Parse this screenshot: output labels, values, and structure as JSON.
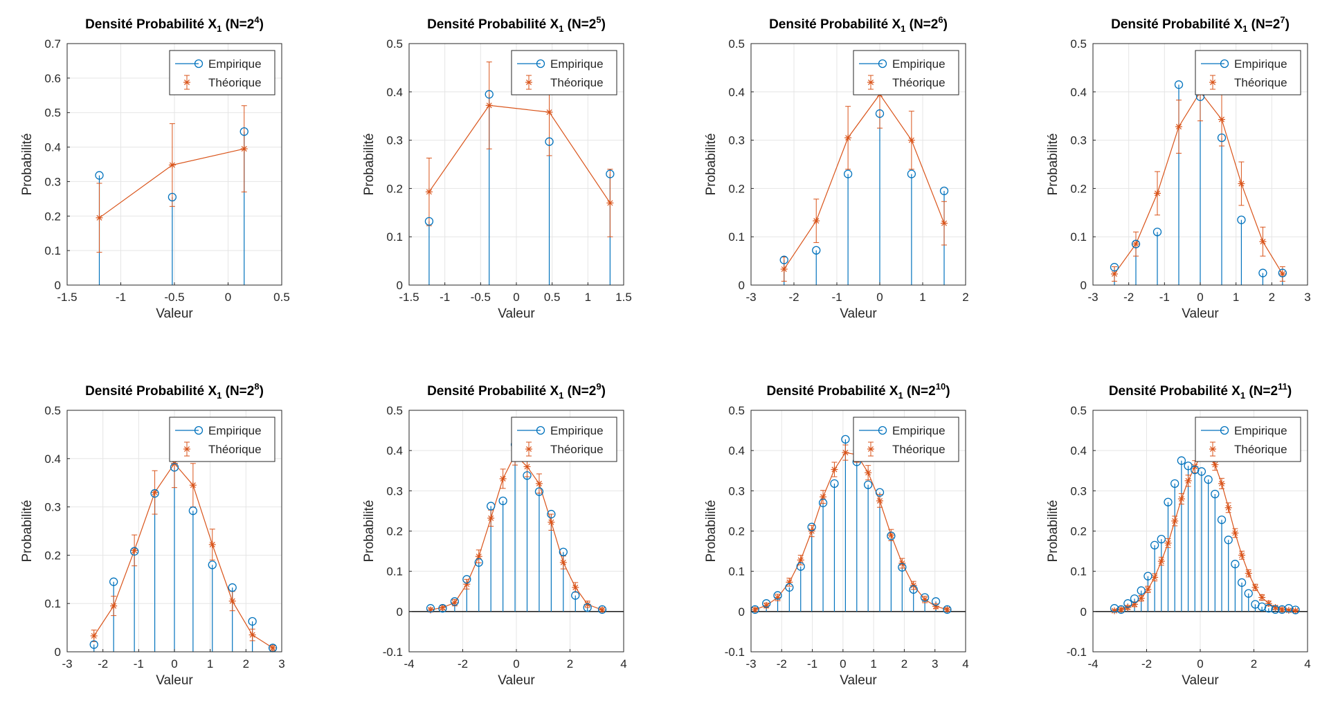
{
  "colors": {
    "empirical": "#0072BD",
    "theoretical": "#D95319",
    "grid": "#e5e5e5",
    "axis": "#262626"
  },
  "legend_labels": {
    "empirical": "Empirique",
    "theoretical": "Théorique"
  },
  "chart_data": [
    {
      "type": "stem+errorbar",
      "title": "Densité Probabilité X",
      "title_sub": "1",
      "title_n": "(N=2",
      "title_exp": "4",
      "title_close": ")",
      "xlabel": "Valeur",
      "ylabel": "Probabilité",
      "xlim": [
        -1.5,
        0.5
      ],
      "ylim": [
        0,
        0.7
      ],
      "xticks": [
        -1.5,
        -1,
        -0.5,
        0,
        0.5
      ],
      "xtick_labels": [
        "-1.5",
        "-1",
        "-0.5",
        "0",
        "0.5"
      ],
      "yticks": [
        0,
        0.1,
        0.2,
        0.3,
        0.4,
        0.5,
        0.6,
        0.7
      ],
      "ytick_labels": [
        "0",
        "0.1",
        "0.2",
        "0.3",
        "0.4",
        "0.5",
        "0.6",
        "0.7"
      ],
      "legend": "top-right",
      "grid": true,
      "x": [
        -1.2,
        -0.52,
        0.15
      ],
      "empirical": [
        0.318,
        0.255,
        0.445
      ],
      "theoretical": [
        0.195,
        0.348,
        0.395
      ],
      "error": [
        0.1,
        0.12,
        0.125
      ]
    },
    {
      "type": "stem+errorbar",
      "title": "Densité Probabilité X",
      "title_sub": "1",
      "title_n": "(N=2",
      "title_exp": "5",
      "title_close": ")",
      "xlabel": "Valeur",
      "ylabel": "Probabilité",
      "xlim": [
        -1.5,
        1.5
      ],
      "ylim": [
        0,
        0.5
      ],
      "xticks": [
        -1.5,
        -1,
        -0.5,
        0,
        0.5,
        1,
        1.5
      ],
      "xtick_labels": [
        "-1.5",
        "-1",
        "-0.5",
        "0",
        "0.5",
        "1",
        "1.5"
      ],
      "yticks": [
        0,
        0.1,
        0.2,
        0.3,
        0.4,
        0.5
      ],
      "ytick_labels": [
        "0",
        "0.1",
        "0.2",
        "0.3",
        "0.4",
        "0.5"
      ],
      "legend": "top-right",
      "grid": true,
      "x": [
        -1.22,
        -0.38,
        0.46,
        1.31
      ],
      "empirical": [
        0.132,
        0.395,
        0.297,
        0.23
      ],
      "theoretical": [
        0.193,
        0.372,
        0.358,
        0.17
      ],
      "error": [
        0.07,
        0.09,
        0.09,
        0.07
      ]
    },
    {
      "type": "stem+errorbar",
      "title": "Densité Probabilité X",
      "title_sub": "1",
      "title_n": "(N=2",
      "title_exp": "6",
      "title_close": ")",
      "xlabel": "Valeur",
      "ylabel": "Probabilité",
      "xlim": [
        -3,
        2
      ],
      "ylim": [
        0,
        0.5
      ],
      "xticks": [
        -3,
        -2,
        -1,
        0,
        1,
        2
      ],
      "xtick_labels": [
        "-3",
        "-2",
        "-1",
        "0",
        "1",
        "2"
      ],
      "yticks": [
        0,
        0.1,
        0.2,
        0.3,
        0.4,
        0.5
      ],
      "ytick_labels": [
        "0",
        "0.1",
        "0.2",
        "0.3",
        "0.4",
        "0.5"
      ],
      "legend": "top-right",
      "grid": true,
      "x": [
        -2.23,
        -1.48,
        -0.74,
        0.0,
        0.74,
        1.5
      ],
      "empirical": [
        0.052,
        0.072,
        0.23,
        0.355,
        0.23,
        0.195
      ],
      "theoretical": [
        0.033,
        0.133,
        0.305,
        0.395,
        0.3,
        0.128
      ],
      "error": [
        0.025,
        0.045,
        0.065,
        0.07,
        0.06,
        0.045
      ]
    },
    {
      "type": "stem+errorbar",
      "title": "Densité Probabilité X",
      "title_sub": "1",
      "title_n": "(N=2",
      "title_exp": "7",
      "title_close": ")",
      "xlabel": "Valeur",
      "ylabel": "Probabilité",
      "xlim": [
        -3,
        3
      ],
      "ylim": [
        0,
        0.5
      ],
      "xticks": [
        -3,
        -2,
        -1,
        0,
        1,
        2,
        3
      ],
      "xtick_labels": [
        "-3",
        "-2",
        "-1",
        "0",
        "1",
        "2",
        "3"
      ],
      "yticks": [
        0,
        0.1,
        0.2,
        0.3,
        0.4,
        0.5
      ],
      "ytick_labels": [
        "0",
        "0.1",
        "0.2",
        "0.3",
        "0.4",
        "0.5"
      ],
      "legend": "top-right",
      "grid": true,
      "x": [
        -2.4,
        -1.8,
        -1.2,
        -0.6,
        0.0,
        0.6,
        1.15,
        1.75,
        2.3
      ],
      "empirical": [
        0.037,
        0.085,
        0.11,
        0.415,
        0.39,
        0.305,
        0.135,
        0.025,
        0.025
      ],
      "theoretical": [
        0.023,
        0.085,
        0.19,
        0.328,
        0.4,
        0.343,
        0.21,
        0.09,
        0.023
      ],
      "error": [
        0.015,
        0.025,
        0.045,
        0.055,
        0.06,
        0.055,
        0.045,
        0.03,
        0.015
      ]
    },
    {
      "type": "stem+errorbar",
      "title": "Densité Probabilité X",
      "title_sub": "1",
      "title_n": "(N=2",
      "title_exp": "8",
      "title_close": ")",
      "xlabel": "Valeur",
      "ylabel": "Probabilité",
      "xlim": [
        -3,
        3
      ],
      "ylim": [
        0,
        0.5
      ],
      "xticks": [
        -3,
        -2,
        -1,
        0,
        1,
        2,
        3
      ],
      "xtick_labels": [
        "-3",
        "-2",
        "-1",
        "0",
        "1",
        "2",
        "3"
      ],
      "yticks": [
        0,
        0.1,
        0.2,
        0.3,
        0.4,
        0.5
      ],
      "ytick_labels": [
        "0",
        "0.1",
        "0.2",
        "0.3",
        "0.4",
        "0.5"
      ],
      "legend": "top-right",
      "grid": true,
      "x": [
        -2.25,
        -1.7,
        -1.12,
        -0.55,
        0.0,
        0.52,
        1.06,
        1.62,
        2.18,
        2.75
      ],
      "empirical": [
        0.015,
        0.145,
        0.208,
        0.328,
        0.382,
        0.292,
        0.18,
        0.133,
        0.063,
        0.008
      ],
      "theoretical": [
        0.033,
        0.095,
        0.21,
        0.33,
        0.39,
        0.345,
        0.222,
        0.105,
        0.035,
        0.008
      ],
      "error": [
        0.012,
        0.02,
        0.032,
        0.045,
        0.05,
        0.045,
        0.032,
        0.02,
        0.012,
        0.005
      ]
    },
    {
      "type": "stem+errorbar",
      "title": "Densité Probabilité X",
      "title_sub": "1",
      "title_n": "(N=2",
      "title_exp": "9",
      "title_close": ")",
      "xlabel": "Valeur",
      "ylabel": "Probabilité",
      "xlim": [
        -4,
        4
      ],
      "ylim": [
        -0.1,
        0.5
      ],
      "xticks": [
        -4,
        -2,
        0,
        2,
        4
      ],
      "xtick_labels": [
        "-4",
        "-2",
        "0",
        "2",
        "4"
      ],
      "yticks": [
        -0.1,
        0,
        0.1,
        0.2,
        0.3,
        0.4,
        0.5
      ],
      "ytick_labels": [
        "-0.1",
        "0",
        "0.1",
        "0.2",
        "0.3",
        "0.4",
        "0.5"
      ],
      "legend": "top-right",
      "grid": true,
      "zero_line": true,
      "x": [
        -3.2,
        -2.75,
        -2.3,
        -1.85,
        -1.4,
        -0.95,
        -0.5,
        -0.05,
        0.4,
        0.85,
        1.3,
        1.75,
        2.2,
        2.65,
        3.2
      ],
      "empirical": [
        0.008,
        0.008,
        0.025,
        0.08,
        0.122,
        0.262,
        0.275,
        0.415,
        0.338,
        0.298,
        0.242,
        0.148,
        0.04,
        0.01,
        0.005
      ],
      "theoretical": [
        0.004,
        0.01,
        0.022,
        0.068,
        0.137,
        0.232,
        0.33,
        0.39,
        0.36,
        0.318,
        0.222,
        0.122,
        0.06,
        0.018,
        0.004
      ],
      "error": [
        0.005,
        0.006,
        0.008,
        0.012,
        0.016,
        0.02,
        0.024,
        0.026,
        0.025,
        0.024,
        0.02,
        0.016,
        0.012,
        0.008,
        0.005
      ]
    },
    {
      "type": "stem+errorbar",
      "title": "Densité Probabilité X",
      "title_sub": "1",
      "title_n": "(N=2",
      "title_exp": "10",
      "title_close": ")",
      "xlabel": "Valeur",
      "ylabel": "Probabilité",
      "xlim": [
        -3,
        4
      ],
      "ylim": [
        -0.1,
        0.5
      ],
      "xticks": [
        -3,
        -2,
        -1,
        0,
        1,
        2,
        3,
        4
      ],
      "xtick_labels": [
        "-3",
        "-2",
        "-1",
        "0",
        "1",
        "2",
        "3",
        "4"
      ],
      "yticks": [
        -0.1,
        0,
        0.1,
        0.2,
        0.3,
        0.4,
        0.5
      ],
      "ytick_labels": [
        "-0.1",
        "0",
        "0.1",
        "0.2",
        "0.3",
        "0.4",
        "0.5"
      ],
      "legend": "top-right",
      "grid": true,
      "zero_line": true,
      "x": [
        -2.87,
        -2.5,
        -2.13,
        -1.75,
        -1.38,
        -1.02,
        -0.65,
        -0.28,
        0.08,
        0.45,
        0.82,
        1.2,
        1.57,
        1.93,
        2.3,
        2.67,
        3.03,
        3.4
      ],
      "empirical": [
        0.005,
        0.02,
        0.04,
        0.06,
        0.112,
        0.21,
        0.27,
        0.318,
        0.428,
        0.372,
        0.315,
        0.296,
        0.188,
        0.11,
        0.055,
        0.035,
        0.025,
        0.005
      ],
      "theoretical": [
        0.005,
        0.015,
        0.035,
        0.073,
        0.128,
        0.2,
        0.285,
        0.353,
        0.395,
        0.39,
        0.345,
        0.275,
        0.19,
        0.12,
        0.065,
        0.03,
        0.013,
        0.005
      ],
      "error": [
        0.004,
        0.006,
        0.008,
        0.01,
        0.012,
        0.014,
        0.016,
        0.018,
        0.019,
        0.019,
        0.018,
        0.016,
        0.014,
        0.012,
        0.01,
        0.008,
        0.006,
        0.004
      ]
    },
    {
      "type": "stem+errorbar",
      "title": "Densité Probabilité X",
      "title_sub": "1",
      "title_n": "(N=2",
      "title_exp": "11",
      "title_close": ")",
      "xlabel": "Valeur",
      "ylabel": "Probabilité",
      "xlim": [
        -4,
        4
      ],
      "ylim": [
        -0.1,
        0.5
      ],
      "xticks": [
        -4,
        -2,
        0,
        2,
        4
      ],
      "xtick_labels": [
        "-4",
        "-2",
        "0",
        "2",
        "4"
      ],
      "yticks": [
        -0.1,
        0,
        0.1,
        0.2,
        0.3,
        0.4,
        0.5
      ],
      "ytick_labels": [
        "-0.1",
        "0",
        "0.1",
        "0.2",
        "0.3",
        "0.4",
        "0.5"
      ],
      "legend": "top-right",
      "grid": true,
      "zero_line": true,
      "x": [
        -3.2,
        -2.95,
        -2.7,
        -2.45,
        -2.2,
        -1.95,
        -1.7,
        -1.45,
        -1.2,
        -0.95,
        -0.7,
        -0.45,
        -0.2,
        0.05,
        0.3,
        0.55,
        0.8,
        1.05,
        1.3,
        1.55,
        1.8,
        2.05,
        2.3,
        2.55,
        2.8,
        3.05,
        3.3,
        3.55
      ],
      "empirical": [
        0.008,
        0.005,
        0.02,
        0.032,
        0.052,
        0.088,
        0.165,
        0.18,
        0.272,
        0.318,
        0.375,
        0.362,
        0.352,
        0.348,
        0.328,
        0.292,
        0.228,
        0.178,
        0.118,
        0.072,
        0.045,
        0.018,
        0.012,
        0.008,
        0.005,
        0.005,
        0.008,
        0.004
      ],
      "theoretical": [
        0.002,
        0.005,
        0.01,
        0.018,
        0.033,
        0.055,
        0.085,
        0.125,
        0.17,
        0.225,
        0.28,
        0.325,
        0.36,
        0.39,
        0.4,
        0.365,
        0.318,
        0.258,
        0.195,
        0.14,
        0.095,
        0.06,
        0.035,
        0.02,
        0.01,
        0.005,
        0.003,
        0.002
      ],
      "error": [
        0.003,
        0.004,
        0.005,
        0.006,
        0.007,
        0.008,
        0.009,
        0.01,
        0.011,
        0.012,
        0.013,
        0.014,
        0.015,
        0.015,
        0.015,
        0.014,
        0.013,
        0.012,
        0.011,
        0.01,
        0.009,
        0.008,
        0.007,
        0.006,
        0.005,
        0.004,
        0.003,
        0.003
      ]
    }
  ]
}
